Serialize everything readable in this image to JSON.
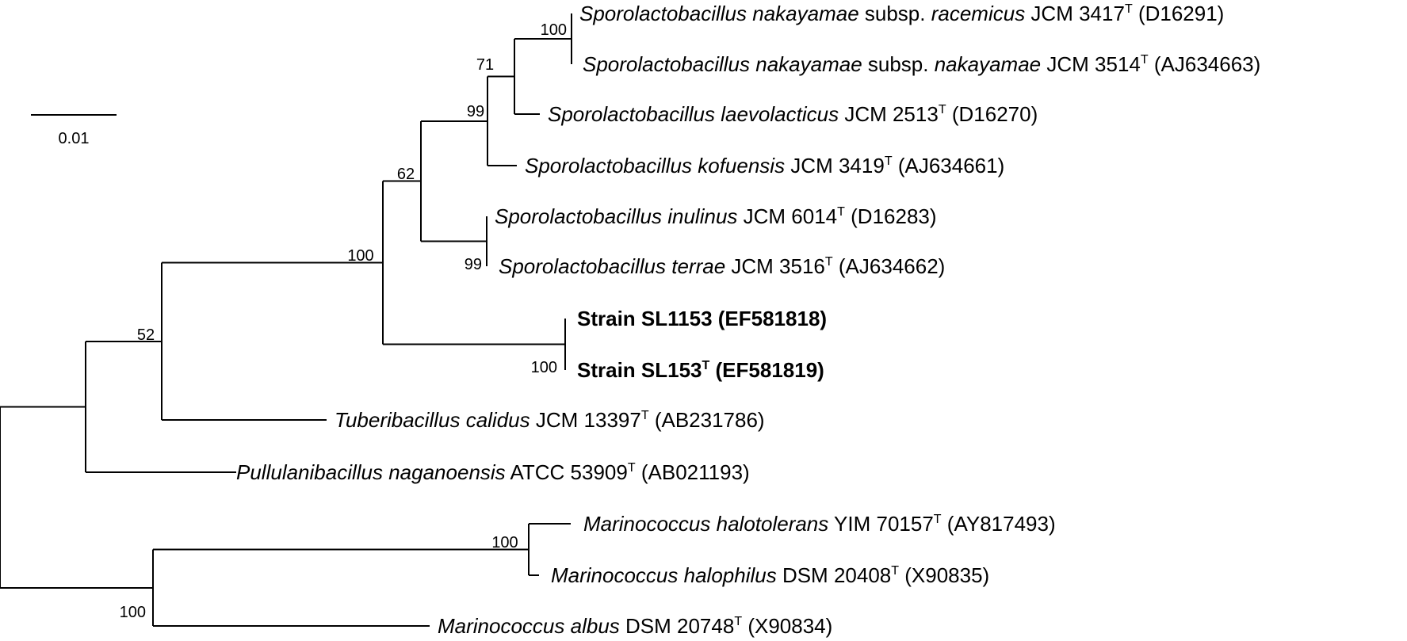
{
  "scale_bar": {
    "label": "0.01"
  },
  "taxa": [
    {
      "id": "s-nak-rac",
      "parts": [
        {
          "t": "Sporolactobacillus nakayamae",
          "i": true
        },
        {
          "t": " subsp. "
        },
        {
          "t": "racemicus",
          "i": true
        },
        {
          "t": " JCM 3417"
        },
        {
          "t": "T",
          "sup": true
        },
        {
          "t": " (D16291)"
        }
      ]
    },
    {
      "id": "s-nak-nak",
      "parts": [
        {
          "t": "Sporolactobacillus nakayamae",
          "i": true
        },
        {
          "t": " subsp. "
        },
        {
          "t": "nakayamae",
          "i": true
        },
        {
          "t": " JCM 3514"
        },
        {
          "t": "T",
          "sup": true
        },
        {
          "t": " (AJ634663)"
        }
      ]
    },
    {
      "id": "s-laev",
      "parts": [
        {
          "t": "Sporolactobacillus laevolacticus",
          "i": true
        },
        {
          "t": " JCM 2513"
        },
        {
          "t": "T",
          "sup": true
        },
        {
          "t": " (D16270)"
        }
      ]
    },
    {
      "id": "s-kof",
      "parts": [
        {
          "t": "Sporolactobacillus kofuensis",
          "i": true
        },
        {
          "t": " JCM 3419"
        },
        {
          "t": "T",
          "sup": true
        },
        {
          "t": " (AJ634661)"
        }
      ]
    },
    {
      "id": "s-inu",
      "parts": [
        {
          "t": "Sporolactobacillus inulinus",
          "i": true
        },
        {
          "t": " JCM 6014"
        },
        {
          "t": "T",
          "sup": true
        },
        {
          "t": " (D16283)"
        }
      ]
    },
    {
      "id": "s-ter",
      "parts": [
        {
          "t": "Sporolactobacillus terrae",
          "i": true
        },
        {
          "t": " JCM 3516"
        },
        {
          "t": "T",
          "sup": true
        },
        {
          "t": " (AJ634662)"
        }
      ]
    },
    {
      "id": "sl1153",
      "bold": true,
      "parts": [
        {
          "t": "Strain SL1153 (EF581818)"
        }
      ]
    },
    {
      "id": "sl153",
      "bold": true,
      "parts": [
        {
          "t": "Strain SL153"
        },
        {
          "t": "T",
          "sup": true
        },
        {
          "t": " (EF581819)"
        }
      ]
    },
    {
      "id": "tub",
      "parts": [
        {
          "t": "Tuberibacillus calidus",
          "i": true
        },
        {
          "t": " JCM 13397"
        },
        {
          "t": "T",
          "sup": true
        },
        {
          "t": " (AB231786)"
        }
      ]
    },
    {
      "id": "pul",
      "parts": [
        {
          "t": "Pullulanibacillus naganoensis",
          "i": true
        },
        {
          "t": " ATCC 53909"
        },
        {
          "t": "T",
          "sup": true
        },
        {
          "t": " (AB021193)"
        }
      ]
    },
    {
      "id": "mhalot",
      "parts": [
        {
          "t": "Marinococcus halotolerans",
          "i": true
        },
        {
          "t": " YIM 70157"
        },
        {
          "t": "T",
          "sup": true
        },
        {
          "t": " (AY817493)"
        }
      ]
    },
    {
      "id": "mhaloph",
      "parts": [
        {
          "t": "Marinococcus halophilus",
          "i": true
        },
        {
          "t": " DSM 20408"
        },
        {
          "t": "T",
          "sup": true
        },
        {
          "t": " (X90835)"
        }
      ]
    },
    {
      "id": "malb",
      "parts": [
        {
          "t": "Marinococcus albus",
          "i": true
        },
        {
          "t": " DSM 20748"
        },
        {
          "t": "T",
          "sup": true
        },
        {
          "t": " (X90834)"
        }
      ]
    }
  ],
  "supports": [
    {
      "id": "n-nak",
      "value": "100"
    },
    {
      "id": "n-71",
      "value": "71"
    },
    {
      "id": "n-99a",
      "value": "99"
    },
    {
      "id": "n-62",
      "value": "62"
    },
    {
      "id": "n-99b",
      "value": "99"
    },
    {
      "id": "n-sl",
      "value": "100"
    },
    {
      "id": "n-spo",
      "value": "100"
    },
    {
      "id": "n-52",
      "value": "52"
    },
    {
      "id": "n-mar",
      "value": "100"
    },
    {
      "id": "n-mar2",
      "value": "100"
    }
  ]
}
